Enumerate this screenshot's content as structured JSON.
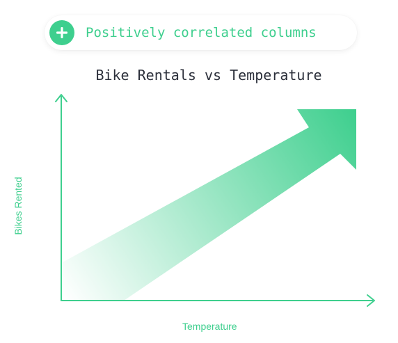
{
  "badge": {
    "icon": "plus-icon",
    "text": "Positively correlated columns"
  },
  "chart": {
    "title": "Bike Rentals vs Temperature",
    "xlabel": "Temperature",
    "ylabel": "Bikes Rented",
    "trend": "positive"
  },
  "colors": {
    "accent": "#3ecf8e",
    "title": "#2b2f3a",
    "background": "#ffffff"
  }
}
